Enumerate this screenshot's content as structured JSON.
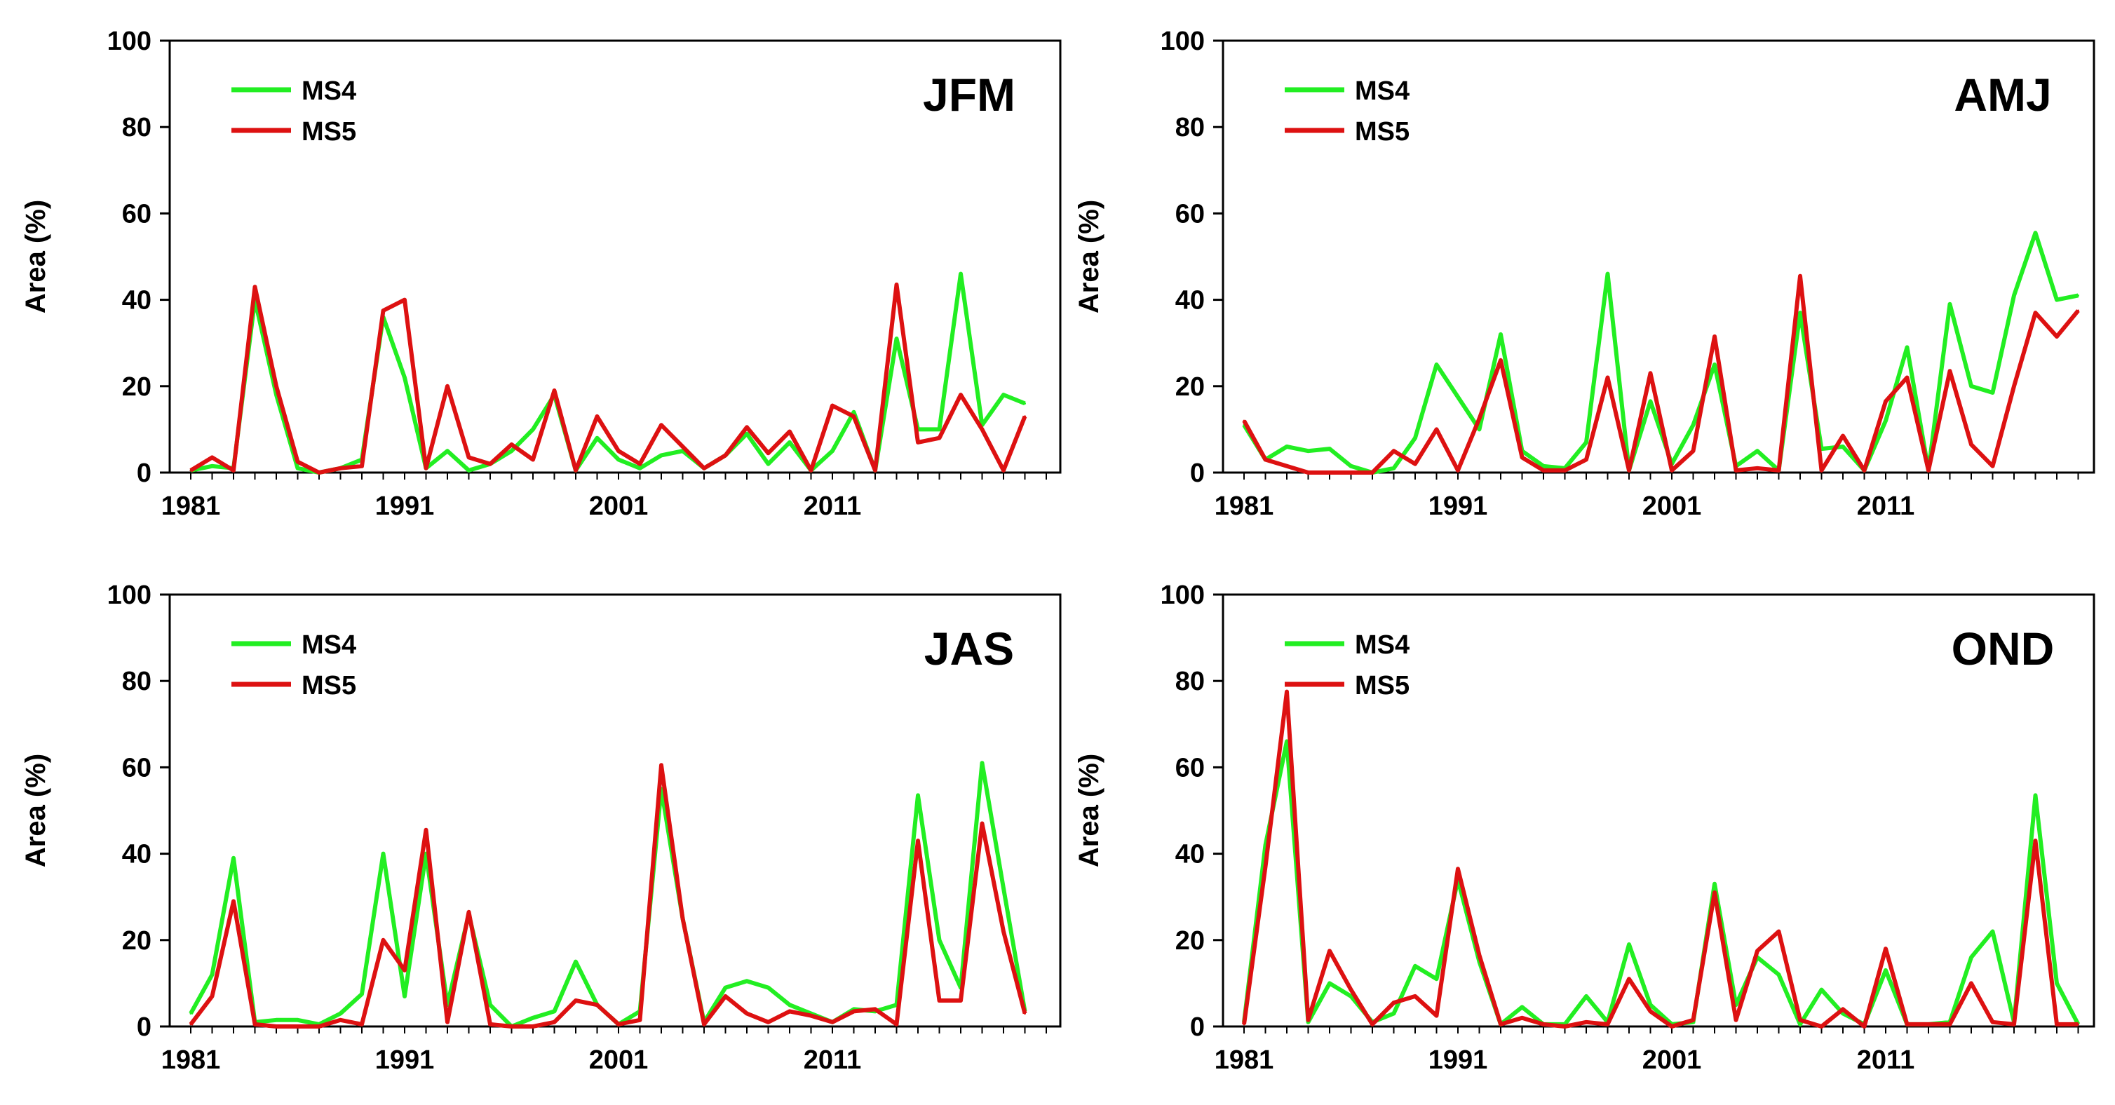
{
  "figure": {
    "ylabel": "Area (%)"
  },
  "colors": {
    "ms4": "#22ee22",
    "ms5": "#dd1111"
  },
  "chart_data": [
    {
      "type": "line",
      "title": "JFM",
      "xlabel": "",
      "ylabel": "Area (%)",
      "ylim": [
        0,
        100
      ],
      "yticks": [
        "0",
        "20",
        "40",
        "60",
        "80",
        "100"
      ],
      "xtick_labels": [
        "1981",
        "1991",
        "2001",
        "2011"
      ],
      "x_start": 1981,
      "legend_position": "top-left",
      "series": [
        {
          "name": "MS4",
          "color": "#22ee22",
          "values": [
            0.5,
            1.5,
            1,
            40,
            18,
            1,
            0,
            1,
            3,
            36,
            22,
            1,
            5,
            0.5,
            2,
            5,
            10,
            18,
            0.5,
            8,
            3,
            1,
            4,
            5,
            1,
            4,
            9,
            2,
            7,
            0.5,
            5,
            14,
            0.5,
            31,
            10,
            10,
            46,
            11,
            18,
            16
          ]
        },
        {
          "name": "MS5",
          "color": "#dd1111",
          "values": [
            0.5,
            3.5,
            0.5,
            43,
            20,
            2.5,
            0,
            1,
            1.5,
            37.5,
            40,
            1,
            20,
            3.5,
            2,
            6.5,
            3,
            19,
            0.5,
            13,
            5,
            2,
            11,
            6,
            1,
            4,
            10.5,
            4.5,
            9.5,
            0.5,
            15.5,
            13,
            0.5,
            43.5,
            7,
            8,
            18,
            10,
            0.5,
            13
          ]
        }
      ]
    },
    {
      "type": "line",
      "title": "AMJ",
      "xlabel": "",
      "ylabel": "Area (%)",
      "ylim": [
        0,
        100
      ],
      "yticks": [
        "0",
        "20",
        "40",
        "60",
        "80",
        "100"
      ],
      "xtick_labels": [
        "1981",
        "1991",
        "2001",
        "2011"
      ],
      "x_start": 1981,
      "legend_position": "top-left",
      "series": [
        {
          "name": "MS4",
          "color": "#22ee22",
          "values": [
            11,
            3,
            6,
            5,
            5.5,
            1.5,
            0,
            1,
            8,
            25,
            17.5,
            10,
            32,
            5,
            1.5,
            1,
            7,
            46,
            0.5,
            16.5,
            2,
            11,
            25,
            1.5,
            5,
            0.5,
            37,
            5.5,
            6,
            0.5,
            12,
            29,
            0.5,
            39,
            20,
            18.5,
            41,
            55.5,
            40,
            41
          ]
        },
        {
          "name": "MS5",
          "color": "#dd1111",
          "values": [
            12,
            3,
            1.5,
            0,
            0,
            0,
            0,
            5,
            2,
            10,
            0.5,
            12.5,
            26,
            3.5,
            0.5,
            0.5,
            3,
            22,
            0.5,
            23,
            0.5,
            5,
            31.5,
            0.5,
            1,
            0.5,
            45.5,
            0.5,
            8.5,
            0.5,
            16.5,
            22,
            0.5,
            23.5,
            6.5,
            1.5,
            20,
            37,
            31.5,
            37.5
          ]
        }
      ]
    },
    {
      "type": "line",
      "title": "JAS",
      "xlabel": "",
      "ylabel": "Area (%)",
      "ylim": [
        0,
        100
      ],
      "yticks": [
        "0",
        "20",
        "40",
        "60",
        "80",
        "100"
      ],
      "xtick_labels": [
        "1981",
        "1991",
        "2001",
        "2011"
      ],
      "x_start": 1981,
      "legend_position": "top-left",
      "series": [
        {
          "name": "MS4",
          "color": "#22ee22",
          "values": [
            3,
            12,
            39,
            1,
            1.5,
            1.5,
            0.5,
            3,
            7.5,
            40,
            7,
            40,
            5,
            26,
            5,
            0,
            2,
            3.5,
            15,
            5,
            0.5,
            3.5,
            55,
            25,
            1,
            9,
            10.5,
            9,
            5,
            3,
            1,
            4,
            3.5,
            5,
            53.5,
            20,
            9,
            61,
            32,
            3.5
          ]
        },
        {
          "name": "MS5",
          "color": "#dd1111",
          "values": [
            0.5,
            7,
            29,
            0.5,
            0,
            0,
            0,
            1.5,
            0.5,
            20,
            13,
            45.5,
            1,
            26.5,
            0.5,
            0,
            0,
            1,
            6,
            5,
            0.5,
            1.5,
            60.5,
            25,
            0.5,
            7,
            3,
            1,
            3.5,
            2.5,
            1,
            3.5,
            4,
            0.5,
            43,
            6,
            6,
            47,
            22,
            3
          ]
        }
      ]
    },
    {
      "type": "line",
      "title": "OND",
      "xlabel": "",
      "ylabel": "Area (%)",
      "ylim": [
        0,
        100
      ],
      "yticks": [
        "0",
        "20",
        "40",
        "60",
        "80",
        "100"
      ],
      "xtick_labels": [
        "1981",
        "1991",
        "2001",
        "2011"
      ],
      "x_start": 1981,
      "legend_position": "top-left",
      "series": [
        {
          "name": "MS4",
          "color": "#22ee22",
          "values": [
            1,
            42,
            66,
            1,
            10,
            7,
            1,
            3,
            14,
            11,
            34,
            15,
            0.5,
            4.5,
            0.5,
            0.5,
            7,
            1,
            19,
            5,
            0.5,
            1,
            33,
            5,
            16,
            12,
            0.5,
            8.5,
            3,
            0.5,
            13,
            0.5,
            0.5,
            1,
            16,
            22,
            1,
            53.5,
            10,
            0.5
          ]
        },
        {
          "name": "MS5",
          "color": "#dd1111",
          "values": [
            0.5,
            37,
            77.5,
            1.5,
            17.5,
            8.5,
            0.5,
            5.5,
            7,
            2.5,
            36.5,
            16.5,
            0.5,
            2,
            0.5,
            0,
            1,
            0.5,
            11,
            3.5,
            0,
            1.5,
            31,
            1.5,
            17.5,
            22,
            1.5,
            0,
            4,
            0,
            18,
            0.5,
            0.5,
            0.5,
            10,
            1,
            0.5,
            43,
            0.5,
            0.5
          ]
        }
      ]
    }
  ]
}
